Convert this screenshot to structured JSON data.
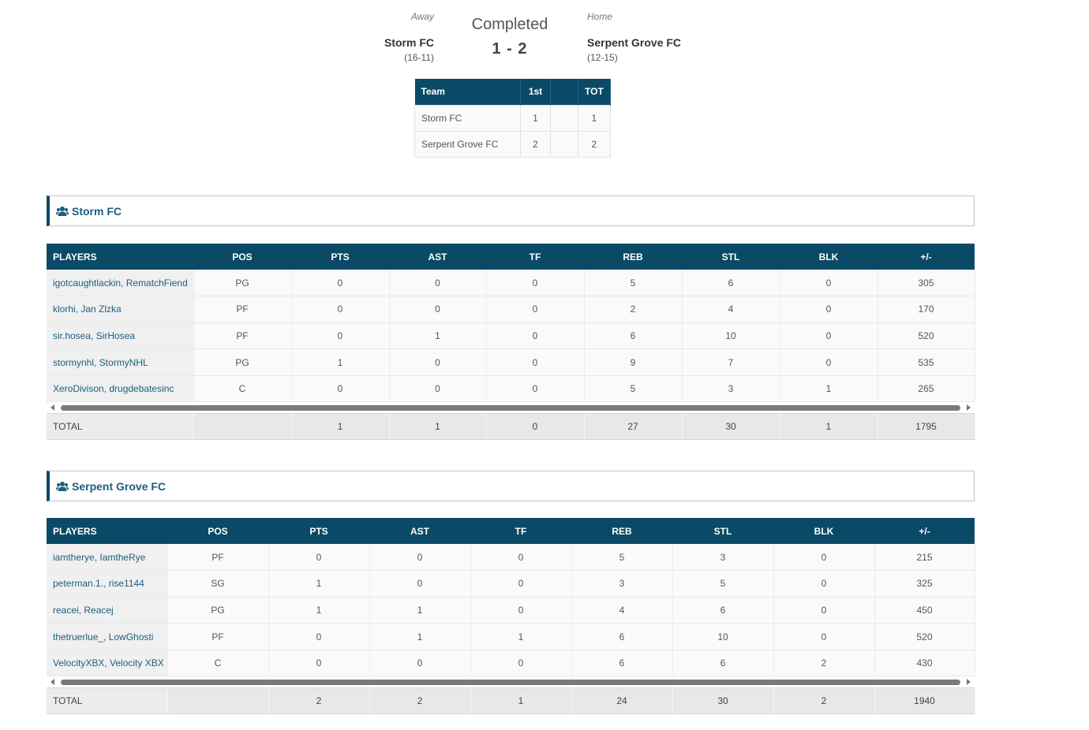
{
  "scoreboard": {
    "away_label": "Away",
    "home_label": "Home",
    "status": "Completed",
    "score": "1 - 2",
    "away_team": "Storm FC",
    "away_record": "(16-11)",
    "home_team": "Serpent Grove FC",
    "home_record": "(12-15)"
  },
  "period_table": {
    "headers": [
      "Team",
      "1st",
      "",
      "TOT"
    ],
    "rows": [
      {
        "team": "Storm FC",
        "p1": "1",
        "blank": "",
        "tot": "1"
      },
      {
        "team": "Serpent Grove FC",
        "p1": "2",
        "blank": "",
        "tot": "2"
      }
    ]
  },
  "teams": [
    {
      "title": "Storm FC",
      "headers": [
        "PLAYERS",
        "POS",
        "PTS",
        "AST",
        "TF",
        "REB",
        "STL",
        "BLK",
        "+/-"
      ],
      "players": [
        {
          "name": "igotcaughtlackin, RematchFiend",
          "pos": "PG",
          "pts": "0",
          "ast": "0",
          "tf": "0",
          "reb": "5",
          "stl": "6",
          "blk": "0",
          "pm": "305"
        },
        {
          "name": "klorhi, Jan Zlzka",
          "pos": "PF",
          "pts": "0",
          "ast": "0",
          "tf": "0",
          "reb": "2",
          "stl": "4",
          "blk": "0",
          "pm": "170"
        },
        {
          "name": "sir.hosea, SirHosea",
          "pos": "PF",
          "pts": "0",
          "ast": "1",
          "tf": "0",
          "reb": "6",
          "stl": "10",
          "blk": "0",
          "pm": "520"
        },
        {
          "name": "stormynhl, StormyNHL",
          "pos": "PG",
          "pts": "1",
          "ast": "0",
          "tf": "0",
          "reb": "9",
          "stl": "7",
          "blk": "0",
          "pm": "535"
        },
        {
          "name": "XeroDivison, drugdebatesinc",
          "pos": "C",
          "pts": "0",
          "ast": "0",
          "tf": "0",
          "reb": "5",
          "stl": "3",
          "blk": "1",
          "pm": "265"
        }
      ],
      "totals": {
        "label": "TOTAL",
        "pos": "",
        "pts": "1",
        "ast": "1",
        "tf": "0",
        "reb": "27",
        "stl": "30",
        "blk": "1",
        "pm": "1795"
      }
    },
    {
      "title": "Serpent Grove FC",
      "headers": [
        "PLAYERS",
        "POS",
        "PTS",
        "AST",
        "TF",
        "REB",
        "STL",
        "BLK",
        "+/-"
      ],
      "players": [
        {
          "name": "iamtherye, IamtheRye",
          "pos": "PF",
          "pts": "0",
          "ast": "0",
          "tf": "0",
          "reb": "5",
          "stl": "3",
          "blk": "0",
          "pm": "215"
        },
        {
          "name": "peterman.1., rise1144",
          "pos": "SG",
          "pts": "1",
          "ast": "0",
          "tf": "0",
          "reb": "3",
          "stl": "5",
          "blk": "0",
          "pm": "325"
        },
        {
          "name": "reacei, Reacej",
          "pos": "PG",
          "pts": "1",
          "ast": "1",
          "tf": "0",
          "reb": "4",
          "stl": "6",
          "blk": "0",
          "pm": "450"
        },
        {
          "name": "thetruerlue_, LowGhosti",
          "pos": "PF",
          "pts": "0",
          "ast": "1",
          "tf": "1",
          "reb": "6",
          "stl": "10",
          "blk": "0",
          "pm": "520"
        },
        {
          "name": "VelocityXBX, Velocity XBX",
          "pos": "C",
          "pts": "0",
          "ast": "0",
          "tf": "0",
          "reb": "6",
          "stl": "6",
          "blk": "2",
          "pm": "430"
        }
      ],
      "totals": {
        "label": "TOTAL",
        "pos": "",
        "pts": "2",
        "ast": "2",
        "tf": "1",
        "reb": "24",
        "stl": "30",
        "blk": "2",
        "pm": "1940"
      }
    }
  ],
  "icons": {
    "team_icon": "users-icon"
  },
  "colors": {
    "header_bg": "#0a4a66",
    "link": "#1a5e80"
  }
}
